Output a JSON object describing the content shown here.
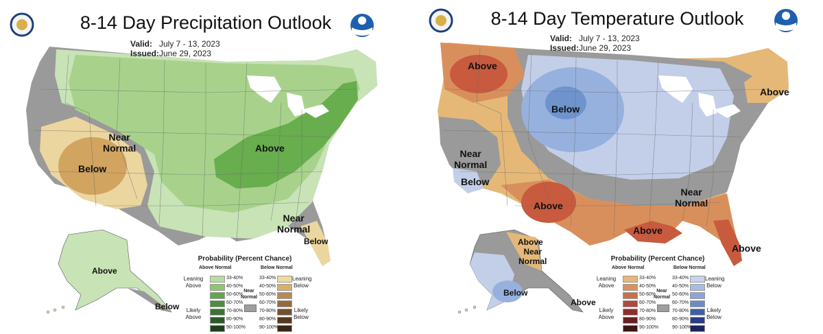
{
  "precip": {
    "title": "8-14 Day Precipitation Outlook",
    "valid_label": "Valid:",
    "valid_value": "July 7 - 13, 2023",
    "issued_label": "Issued:",
    "issued_value": "June 29, 2023",
    "regions": {
      "near_normal_west": [
        "Near",
        "Normal"
      ],
      "below_west": "Below",
      "above_east": "Above",
      "near_normal_se": [
        "Near",
        "Normal"
      ],
      "below_fl": "Below",
      "above_ak": "Above",
      "below_ak": "Below"
    },
    "legend": {
      "title": "Probability (Percent Chance)",
      "left_header": "Above Normal",
      "right_header": "Below Normal",
      "left_group1": [
        "Leaning",
        "Above"
      ],
      "left_group2": [
        "Likely",
        "Above"
      ],
      "right_group1": [
        "Leaning",
        "Below"
      ],
      "right_group2": [
        "Likely",
        "Below"
      ],
      "near": [
        "Near",
        "Normal"
      ],
      "left_values": [
        "33-40%",
        "40-50%",
        "50-60%",
        "60-70%",
        "70-80%",
        "80-90%",
        "90-100%"
      ],
      "right_values": [
        "33-40%",
        "40-50%",
        "50-60%",
        "60-70%",
        "70-80%",
        "80-90%",
        "90-100%"
      ],
      "left_colors": [
        "#b9dca4",
        "#8fc56f",
        "#5fa84a",
        "#4a8f3d",
        "#3a7532",
        "#2b5c27",
        "#1c421b"
      ],
      "right_colors": [
        "#efd9a2",
        "#d9b06a",
        "#b98a50",
        "#966a3c",
        "#75502d",
        "#57391f",
        "#3b2514"
      ]
    }
  },
  "temp": {
    "title": "8-14 Day Temperature Outlook",
    "valid_label": "Valid:",
    "valid_value": "July 7 - 13, 2023",
    "issued_label": "Issued:",
    "issued_value": "June 29, 2023",
    "regions": {
      "above_nw": "Above",
      "below_center": "Below",
      "above_ne": "Above",
      "near_normal_west": [
        "Near",
        "Normal"
      ],
      "below_ca": "Below",
      "above_tx": "Above",
      "near_normal_se": [
        "Near",
        "Normal"
      ],
      "above_gulf": "Above",
      "above_fl": "Above",
      "above_ak": "Above",
      "near_normal_ak": [
        "Near",
        "Normal"
      ],
      "below_ak": "Below",
      "above_ak_se": "Above"
    },
    "legend": {
      "title": "Probability (Percent Chance)",
      "left_header": "Above Normal",
      "right_header": "Below Normal",
      "left_group1": [
        "Leaning",
        "Above"
      ],
      "left_group2": [
        "Likely",
        "Above"
      ],
      "right_group1": [
        "Leaning",
        "Below"
      ],
      "right_group2": [
        "Likely",
        "Below"
      ],
      "near": [
        "Near",
        "Normal"
      ],
      "left_values": [
        "33-40%",
        "40-50%",
        "50-60%",
        "60-70%",
        "70-80%",
        "80-90%",
        "90-100%"
      ],
      "right_values": [
        "33-40%",
        "40-50%",
        "50-60%",
        "60-70%",
        "70-80%",
        "80-90%",
        "90-100%"
      ],
      "left_colors": [
        "#e8b678",
        "#d9935a",
        "#c9704a",
        "#b2473a",
        "#8f2e2c",
        "#6a1f20",
        "#3f1415"
      ],
      "right_colors": [
        "#c7d3ec",
        "#a9bde3",
        "#8aa6d8",
        "#6a8bc8",
        "#3e5fa8",
        "#2a3d85",
        "#1a2660"
      ]
    }
  },
  "colors": {
    "gray": "#9a9a9a",
    "water": "#ffffff",
    "precip_light_green": "#c8e3b6",
    "precip_green": "#a8d28c",
    "precip_dark_green": "#68ad4e",
    "precip_tan": "#ecd6a0",
    "precip_brown": "#d1a460",
    "temp_tan": "#e6b877",
    "temp_orange": "#d98f5c",
    "temp_red": "#c85a3e",
    "temp_light_blue": "#c3cfe9",
    "temp_blue": "#97b1de",
    "temp_dark_blue": "#6f93cc"
  }
}
